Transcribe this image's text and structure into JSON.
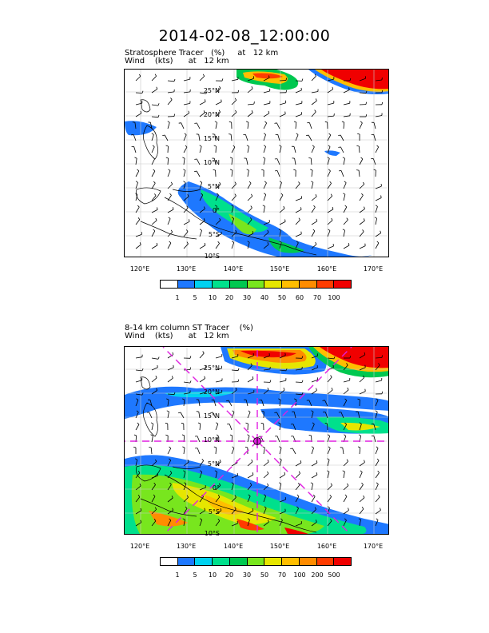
{
  "title": "2014-02-08_12:00:00",
  "panels": [
    {
      "subtitle_line1": "Stratosphere Tracer   (%)     at   12 km",
      "subtitle_line2": "Wind    (kts)      at   12 km",
      "lat_labels": [
        "25°N",
        "20°N",
        "15°N",
        "10°N",
        "5°N",
        "0°",
        "5°S",
        "10°S"
      ],
      "lon_labels": [
        "120°E",
        "130°E",
        "140°E",
        "150°E",
        "160°E",
        "170°E"
      ],
      "legend_labels": [
        "1",
        "5",
        "10",
        "20",
        "30",
        "40",
        "50",
        "60",
        "70",
        "100"
      ],
      "legend_colors": [
        "#ffffff",
        "#1e78ff",
        "#00d2f0",
        "#00e08c",
        "#00c850",
        "#78e61e",
        "#e6e600",
        "#ffbe00",
        "#ff8c00",
        "#ff3c00",
        "#f00000"
      ]
    },
    {
      "subtitle_line1": "8-14 km column ST Tracer    (%)",
      "subtitle_line2": "Wind    (kts)      at   12 km",
      "lat_labels": [
        "25°N",
        "20°N",
        "15°N",
        "10°N",
        "5°N",
        "0°",
        "5°S",
        "10°S"
      ],
      "lon_labels": [
        "120°E",
        "130°E",
        "140°E",
        "150°E",
        "160°E",
        "170°E"
      ],
      "legend_labels": [
        "1",
        "5",
        "10",
        "20",
        "30",
        "50",
        "70",
        "100",
        "200",
        "500"
      ],
      "legend_colors": [
        "#ffffff",
        "#1e78ff",
        "#00d2f0",
        "#00e08c",
        "#00c850",
        "#78e61e",
        "#e6e600",
        "#ffbe00",
        "#ff8c00",
        "#ff3c00",
        "#f00000"
      ],
      "marker_center": {
        "lon": 145,
        "lat": 10
      },
      "marker_color": "#e020e0"
    }
  ]
}
